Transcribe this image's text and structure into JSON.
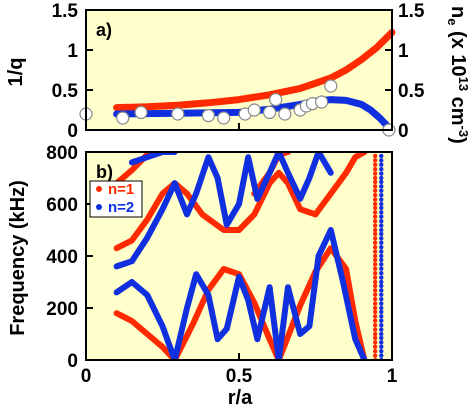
{
  "chart_data": [
    {
      "panel": "a)",
      "type": "line",
      "ylabel_left": "1/q",
      "ylabel_right_main": "n",
      "ylabel_right_sub": "e",
      "ylabel_right_rest": " (x 10",
      "ylabel_right_sup": "13",
      "ylabel_right_end": " cm",
      "ylabel_right_sup2": "-3",
      "ylabel_right_close": ")",
      "xlim": [
        0,
        1
      ],
      "ylim_left": [
        0,
        1.5
      ],
      "ylim_right": [
        0,
        1.5
      ],
      "yticks_left": [
        "0",
        "0.5",
        "1",
        "1.5"
      ],
      "yticks_right": [
        "0",
        "0.5",
        "1",
        "1.5"
      ],
      "series": [
        {
          "color": "#ff2a00",
          "x": [
            0.1,
            0.2,
            0.3,
            0.4,
            0.5,
            0.6,
            0.7,
            0.8,
            0.85,
            0.9,
            0.95,
            1.0
          ],
          "y": [
            0.28,
            0.29,
            0.31,
            0.34,
            0.38,
            0.44,
            0.52,
            0.65,
            0.75,
            0.88,
            1.03,
            1.22
          ]
        },
        {
          "color": "#1030e0",
          "x": [
            0.1,
            0.3,
            0.5,
            0.6,
            0.7,
            0.75,
            0.8,
            0.85,
            0.9,
            0.93,
            0.96,
            0.98,
            1.0
          ],
          "y": [
            0.2,
            0.21,
            0.22,
            0.26,
            0.32,
            0.36,
            0.38,
            0.37,
            0.32,
            0.25,
            0.15,
            0.07,
            0.0
          ]
        },
        {
          "type": "scatter",
          "marker": "open-circle",
          "x": [
            0.0,
            0.12,
            0.18,
            0.3,
            0.4,
            0.45,
            0.52,
            0.55,
            0.6,
            0.62,
            0.65,
            0.7,
            0.72,
            0.74,
            0.77,
            0.8,
            0.99
          ],
          "y": [
            0.2,
            0.15,
            0.22,
            0.2,
            0.18,
            0.15,
            0.2,
            0.25,
            0.22,
            0.38,
            0.2,
            0.25,
            0.3,
            0.33,
            0.35,
            0.55,
            0.0
          ]
        }
      ]
    },
    {
      "panel": "b)",
      "type": "scatter",
      "xlabel": "r/a",
      "ylabel": "Frequency (kHz)",
      "xlim": [
        0,
        1
      ],
      "ylim": [
        0,
        800
      ],
      "xticks": [
        "0",
        "0.5",
        "1"
      ],
      "yticks": [
        "0",
        "200",
        "400",
        "600",
        "800"
      ],
      "legend": {
        "position": "upper-left",
        "entries": [
          "n=1",
          "n=2"
        ]
      },
      "series": [
        {
          "name": "n=1",
          "color": "#ff2a00",
          "branches": [
            {
              "x": [
                0.1,
                0.15,
                0.2,
                0.25,
                0.29
              ],
              "y": [
                180,
                150,
                100,
                50,
                0
              ]
            },
            {
              "x": [
                0.29,
                0.35,
                0.4,
                0.45,
                0.5,
                0.55,
                0.6,
                0.63
              ],
              "y": [
                0,
                140,
                270,
                350,
                330,
                220,
                80,
                0
              ]
            },
            {
              "x": [
                0.63,
                0.7,
                0.75,
                0.8,
                0.85,
                0.88,
                0.91
              ],
              "y": [
                0,
                210,
                340,
                430,
                350,
                150,
                0
              ]
            },
            {
              "x": [
                0.1,
                0.15,
                0.2,
                0.25,
                0.29,
                0.33,
                0.38,
                0.45,
                0.5
              ],
              "y": [
                430,
                460,
                540,
                640,
                680,
                640,
                560,
                500,
                500
              ]
            },
            {
              "x": [
                0.5,
                0.55,
                0.6,
                0.63,
                0.66,
                0.7,
                0.75,
                0.8
              ],
              "y": [
                500,
                560,
                680,
                720,
                680,
                580,
                560,
                640
              ]
            },
            {
              "x": [
                0.1,
                0.15,
                0.2,
                0.22
              ],
              "y": [
                680,
                730,
                790,
                800
              ]
            },
            {
              "x": [
                0.55,
                0.6,
                0.63,
                0.66
              ],
              "y": [
                640,
                720,
                790,
                800
              ]
            },
            {
              "x": [
                0.8,
                0.85,
                0.88,
                0.91
              ],
              "y": [
                640,
                720,
                780,
                800
              ]
            },
            {
              "x": [
                0.945,
                0.945,
                0.945,
                0.945,
                0.945,
                0.945,
                0.945,
                0.945
              ],
              "y": [
                0,
                100,
                200,
                300,
                400,
                500,
                600,
                700
              ]
            }
          ]
        },
        {
          "name": "n=2",
          "color": "#1030e0",
          "branches": [
            {
              "x": [
                0.1,
                0.15,
                0.2,
                0.25,
                0.29
              ],
              "y": [
                260,
                300,
                250,
                130,
                0
              ]
            },
            {
              "x": [
                0.29,
                0.33,
                0.36,
                0.4,
                0.43,
                0.46,
                0.5,
                0.53,
                0.56,
                0.6,
                0.63
              ],
              "y": [
                0,
                200,
                330,
                250,
                80,
                120,
                320,
                230,
                80,
                280,
                0
              ]
            },
            {
              "x": [
                0.63,
                0.66,
                0.7,
                0.73,
                0.76,
                0.8,
                0.84,
                0.88,
                0.91
              ],
              "y": [
                0,
                280,
                100,
                130,
                400,
                500,
                300,
                80,
                0
              ]
            },
            {
              "x": [
                0.1,
                0.15,
                0.2,
                0.25,
                0.29
              ],
              "y": [
                360,
                380,
                470,
                580,
                680
              ]
            },
            {
              "x": [
                0.29,
                0.33,
                0.36,
                0.4,
                0.43,
                0.46,
                0.5,
                0.53,
                0.56
              ],
              "y": [
                680,
                560,
                640,
                780,
                700,
                520,
                600,
                780,
                620
              ]
            },
            {
              "x": [
                0.56,
                0.6,
                0.63,
                0.66,
                0.7,
                0.73,
                0.76,
                0.8
              ],
              "y": [
                620,
                720,
                800,
                720,
                620,
                700,
                800,
                720
              ]
            },
            {
              "x": [
                0.15,
                0.2,
                0.25,
                0.29
              ],
              "y": [
                760,
                780,
                800,
                800
              ]
            },
            {
              "x": [
                0.965,
                0.965,
                0.965,
                0.965,
                0.965,
                0.965,
                0.965,
                0.965
              ],
              "y": [
                0,
                100,
                200,
                300,
                400,
                500,
                600,
                700
              ]
            }
          ]
        }
      ]
    }
  ]
}
